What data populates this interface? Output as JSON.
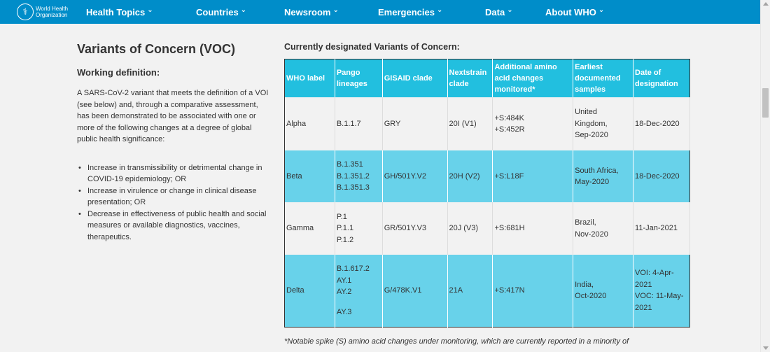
{
  "header": {
    "logo_line1": "World Health",
    "logo_line2": "Organization",
    "nav": [
      {
        "label": "Health Topics",
        "width": 157
      },
      {
        "label": "Countries",
        "width": 126
      },
      {
        "label": "Newsroom",
        "width": 134
      },
      {
        "label": "Emergencies",
        "width": 153
      },
      {
        "label": "Data",
        "width": 86
      },
      {
        "label": "About WHO",
        "width": 100
      }
    ]
  },
  "left": {
    "title": "Variants of Concern (VOC)",
    "subtitle": "Working definition:",
    "definition": "A SARS-CoV-2 variant that meets the definition of a VOI (see below) and, through a comparative assessment, has been demonstrated to be associated with one or more of the following changes at a degree of global public health significance:",
    "bullets": [
      "Increase in transmissibility or detrimental change in COVID-19 epidemiology; OR",
      "Increase in virulence or change in clinical disease presentation; OR",
      "Decrease in effectiveness of public health and social measures or available diagnostics, vaccines, therapeutics."
    ]
  },
  "right": {
    "title": "Currently designated Variants of Concern:",
    "columns": [
      "WHO label",
      "Pango lineages",
      "GISAID clade",
      "Nextstrain clade",
      "Additional amino acid changes monitored*",
      "Earliest documented samples",
      "Date of designation"
    ],
    "rows": [
      {
        "label": "Alpha",
        "pango": [
          "B.1.1.7"
        ],
        "gisaid": "GRY",
        "nextstrain": "20I (V1)",
        "amino": [
          "+S:484K",
          "+S:452R"
        ],
        "earliest": [
          "United",
          "Kingdom,",
          "Sep-2020"
        ],
        "date": [
          "18-Dec-2020"
        ]
      },
      {
        "label": "Beta",
        "pango": [
          "B.1.351",
          "B.1.351.2",
          "B.1.351.3"
        ],
        "gisaid": "GH/501Y.V2",
        "nextstrain": "20H (V2)",
        "amino": [
          "+S:L18F"
        ],
        "earliest": [
          "South Africa,",
          "May-2020"
        ],
        "date": [
          "18-Dec-2020"
        ]
      },
      {
        "label": "Gamma",
        "pango": [
          "P.1",
          "P.1.1",
          "P.1.2"
        ],
        "gisaid": "GR/501Y.V3",
        "nextstrain": "20J (V3)",
        "amino": [
          "+S:681H"
        ],
        "earliest": [
          "Brazil,",
          "Nov-2020"
        ],
        "date": [
          "11-Jan-2021"
        ]
      },
      {
        "label": "Delta",
        "pango": [
          "B.1.617.2",
          "AY.1",
          "AY.2",
          "",
          "AY.3"
        ],
        "gisaid": "G/478K.V1",
        "nextstrain": "21A",
        "amino": [
          "+S:417N"
        ],
        "earliest": [
          "India,",
          "Oct-2020"
        ],
        "date": [
          "VOI: 4-Apr-",
          "2021",
          "VOC: 11-May-",
          "2021"
        ]
      }
    ],
    "footnote": "*Notable spike (S) amino acid changes under monitoring, which are currently reported in a minority of"
  }
}
